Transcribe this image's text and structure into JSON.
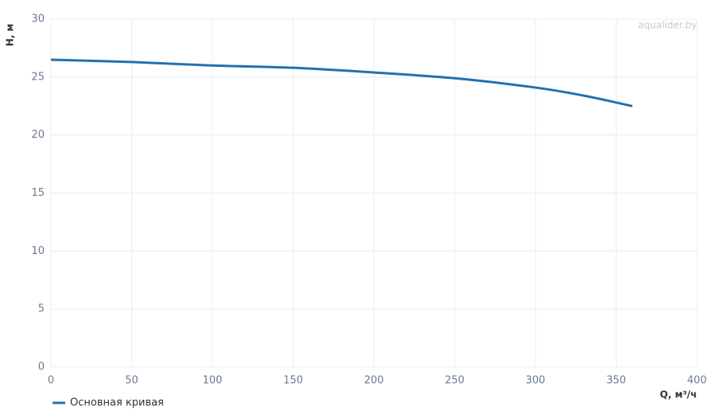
{
  "chart_data": {
    "type": "line",
    "watermark": "aqualider.by",
    "x_label": "Q, м³/ч",
    "y_label": "H, м",
    "x": [
      0,
      50,
      100,
      150,
      200,
      250,
      300,
      330,
      360
    ],
    "series": [
      {
        "name": "Основная кривая",
        "color": "#2271b1",
        "values": [
          26.5,
          26.3,
          26.0,
          25.8,
          25.4,
          24.9,
          24.1,
          23.4,
          22.5
        ]
      }
    ],
    "xlim": [
      0,
      400
    ],
    "xticks": [
      0,
      50,
      100,
      150,
      200,
      250,
      300,
      350,
      400
    ],
    "ylim": [
      0,
      30
    ],
    "yticks": [
      0,
      5,
      10,
      15,
      20,
      25,
      30
    ],
    "grid": true
  }
}
